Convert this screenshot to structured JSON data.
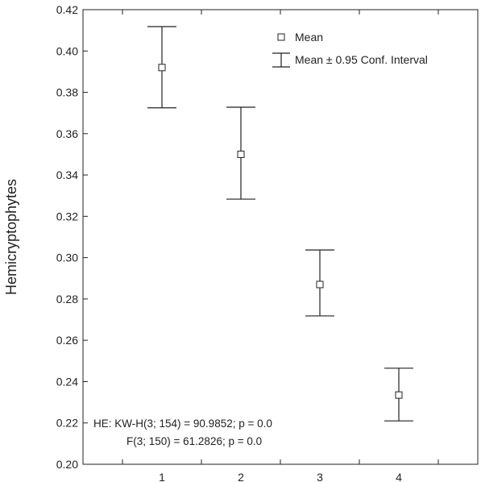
{
  "chart_data": {
    "type": "scatter",
    "ylabel": "Hemicryptophytes",
    "xlabel": "",
    "categories": [
      "1",
      "2",
      "3",
      "4"
    ],
    "xlim": [
      0,
      5
    ],
    "ylim": [
      0.2,
      0.42
    ],
    "yticks": [
      "0.20",
      "0.22",
      "0.24",
      "0.26",
      "0.28",
      "0.30",
      "0.32",
      "0.34",
      "0.36",
      "0.38",
      "0.40",
      "0.42"
    ],
    "series": [
      {
        "name": "Mean",
        "values": [
          0.392,
          0.35,
          0.287,
          0.2335
        ],
        "ci_low": [
          0.3725,
          0.3283,
          0.2718,
          0.221
        ],
        "ci_high": [
          0.4118,
          0.3728,
          0.3037,
          0.2465
        ]
      }
    ],
    "legend": {
      "position": "top-right",
      "mean_label": "Mean",
      "interval_label": "Mean ± 0.95 Conf. Interval"
    },
    "annotations": [
      "HE: KW-H(3; 154) = 90.9852; p = 0.0",
      "F(3; 150) = 61.2826; p = 0.0"
    ],
    "grid": false
  }
}
